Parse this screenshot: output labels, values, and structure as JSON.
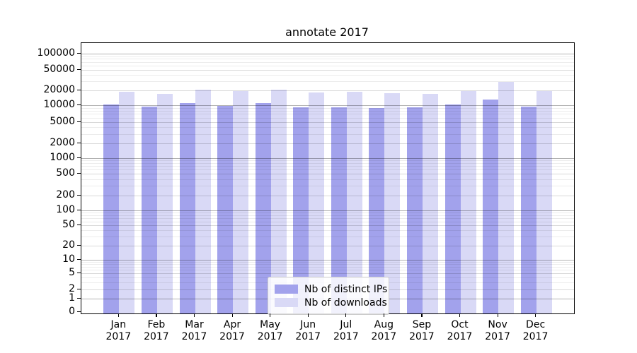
{
  "chart_data": {
    "type": "bar",
    "title": "annotate 2017",
    "categories": [
      {
        "month": "Jan",
        "year": "2017"
      },
      {
        "month": "Feb",
        "year": "2017"
      },
      {
        "month": "Mar",
        "year": "2017"
      },
      {
        "month": "Apr",
        "year": "2017"
      },
      {
        "month": "May",
        "year": "2017"
      },
      {
        "month": "Jun",
        "year": "2017"
      },
      {
        "month": "Jul",
        "year": "2017"
      },
      {
        "month": "Aug",
        "year": "2017"
      },
      {
        "month": "Sep",
        "year": "2017"
      },
      {
        "month": "Oct",
        "year": "2017"
      },
      {
        "month": "Nov",
        "year": "2017"
      },
      {
        "month": "Dec",
        "year": "2017"
      }
    ],
    "series": [
      {
        "name": "Nb of distinct IPs",
        "color": "#a2a2ec",
        "values": [
          10500,
          9400,
          11000,
          9600,
          11000,
          9300,
          9100,
          8900,
          9100,
          10200,
          13000,
          9500
        ]
      },
      {
        "name": "Nb of downloads",
        "color": "#d9d9f6",
        "values": [
          19000,
          17000,
          21000,
          19300,
          21000,
          18000,
          18800,
          17500,
          17200,
          19500,
          29000,
          19200
        ]
      }
    ],
    "yscale": "symlog",
    "yticks": [
      0,
      1,
      2,
      5,
      10,
      20,
      50,
      100,
      200,
      500,
      1000,
      2000,
      5000,
      10000,
      20000,
      50000,
      100000
    ],
    "ylim": [
      0,
      150000
    ],
    "xlabel": "",
    "ylabel": "",
    "grid": true,
    "legend_position": "lower center",
    "colors": {
      "major_grid": "#b2b2b2",
      "labeled_grid": "#d9d9d9",
      "minor_grid": "#ececec",
      "spine": "#000000",
      "text": "#000000",
      "legend_border": "#cccccc",
      "legend_bg": "#ffffff"
    }
  }
}
